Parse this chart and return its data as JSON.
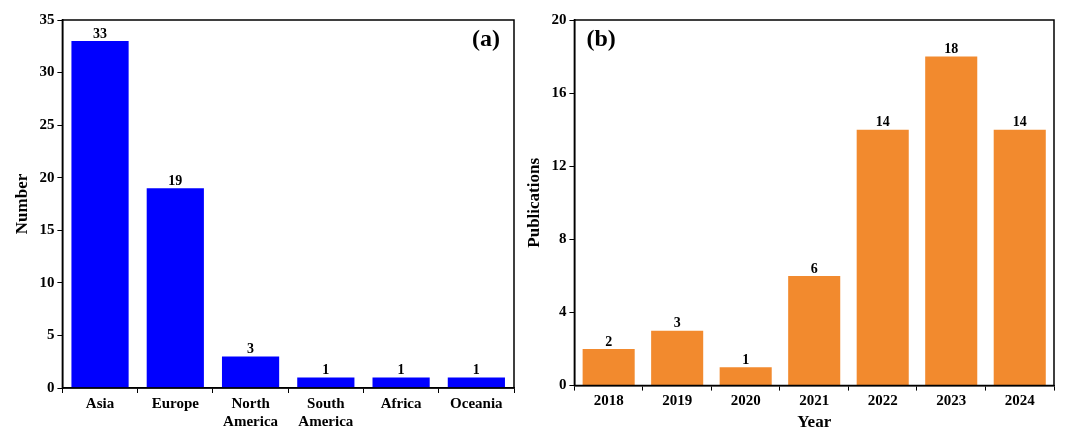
{
  "chart_data": [
    {
      "type": "bar",
      "annotations": [
        "(a)"
      ],
      "ylabel": "Number",
      "categories": [
        "Asia",
        "Europe",
        "North America",
        "South America",
        "Africa",
        "Oceania"
      ],
      "values": [
        33,
        19,
        3,
        1,
        1,
        1
      ],
      "color": "#0000ff",
      "ylim": [
        0,
        35
      ],
      "yticks": [
        0,
        5,
        10,
        15,
        20,
        25,
        30,
        35
      ],
      "data_labels": true,
      "legend": false
    },
    {
      "type": "bar",
      "annotations": [
        "(b)"
      ],
      "xlabel": "Year",
      "ylabel": "Publications",
      "categories": [
        "2018",
        "2019",
        "2020",
        "2021",
        "2022",
        "2023",
        "2024"
      ],
      "values": [
        2,
        3,
        1,
        6,
        14,
        18,
        14
      ],
      "color": "#f28a2e",
      "ylim": [
        0,
        20
      ],
      "yticks": [
        0,
        4,
        8,
        12,
        16,
        20
      ],
      "data_labels": true,
      "legend": false
    }
  ]
}
